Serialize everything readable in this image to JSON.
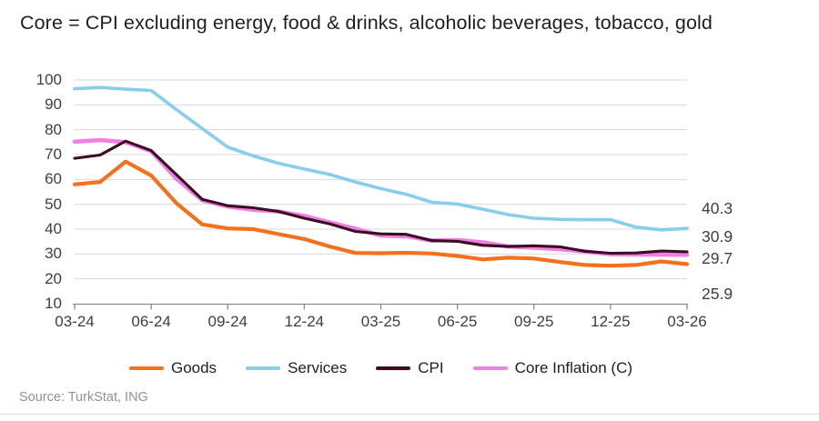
{
  "title": "Core = CPI excluding energy, food & drinks, alcoholic beverages, tobacco, gold",
  "source": "Source: TurkStat, ING",
  "colors": {
    "goods": "#f4701d",
    "services": "#86ceec",
    "cpi": "#3c0d22",
    "core": "#ef7fe3",
    "gridline": "#dadada",
    "axis": "#8c8c8c"
  },
  "chart_data": {
    "type": "line",
    "title": "Core = CPI excluding energy, food & drinks, alcoholic beverages, tobacco, gold",
    "categories": [
      "03-24",
      "04-24",
      "05-24",
      "06-24",
      "07-24",
      "08-24",
      "09-24",
      "10-24",
      "11-24",
      "12-24",
      "01-25",
      "02-25",
      "03-25",
      "04-25",
      "05-25",
      "06-25",
      "07-25",
      "08-25",
      "09-25",
      "10-25",
      "11-25",
      "12-25",
      "01-26",
      "02-26",
      "03-26"
    ],
    "x_tick_labels": [
      "03-24",
      "06-24",
      "09-24",
      "12-24",
      "03-25",
      "06-25",
      "09-25",
      "12-25",
      "03-26"
    ],
    "y_axis": {
      "min": 10,
      "max": 100,
      "step": 10,
      "ticks": [
        10,
        20,
        30,
        40,
        50,
        60,
        70,
        80,
        90,
        100
      ]
    },
    "grid": "horizontal",
    "legend_position": "bottom",
    "series": [
      {
        "name": "Goods",
        "color": "#f4701d",
        "values": [
          58.0,
          59.0,
          67.2,
          61.6,
          50.3,
          41.9,
          40.3,
          40.0,
          38.0,
          36.0,
          33.0,
          30.4,
          30.3,
          30.5,
          30.2,
          29.2,
          27.8,
          28.5,
          28.2,
          26.8,
          25.6,
          25.3,
          25.6,
          27.0,
          25.9
        ]
      },
      {
        "name": "Services",
        "color": "#86ceec",
        "values": [
          96.5,
          97.0,
          96.3,
          95.8,
          88.0,
          80.5,
          73.0,
          69.5,
          66.5,
          64.2,
          62.0,
          59.0,
          56.3,
          54.0,
          50.8,
          50.1,
          48.0,
          45.8,
          44.4,
          43.9,
          43.8,
          43.8,
          40.8,
          39.7,
          40.3
        ]
      },
      {
        "name": "CPI",
        "color": "#3c0d22",
        "values": [
          68.5,
          69.8,
          75.4,
          71.6,
          61.8,
          52.0,
          49.4,
          48.6,
          47.1,
          44.4,
          42.1,
          39.1,
          38.1,
          37.9,
          35.4,
          35.1,
          33.5,
          33.0,
          33.3,
          32.9,
          31.1,
          30.3,
          30.4,
          31.2,
          30.9
        ]
      },
      {
        "name": "Core Inflation (C)",
        "color": "#ef7fe3",
        "values": [
          75.2,
          75.8,
          75.0,
          71.4,
          60.2,
          51.6,
          49.1,
          47.8,
          47.1,
          45.3,
          42.7,
          40.2,
          37.4,
          37.1,
          35.4,
          35.6,
          34.7,
          33.0,
          32.5,
          31.9,
          31.0,
          29.9,
          29.8,
          29.8,
          29.7
        ]
      }
    ],
    "end_labels": [
      {
        "series": "Services",
        "text": "40.3"
      },
      {
        "series": "CPI",
        "text": "30.9"
      },
      {
        "series": "Core Inflation (C)",
        "text": "29.7"
      },
      {
        "series": "Goods",
        "text": "25.9"
      }
    ]
  }
}
